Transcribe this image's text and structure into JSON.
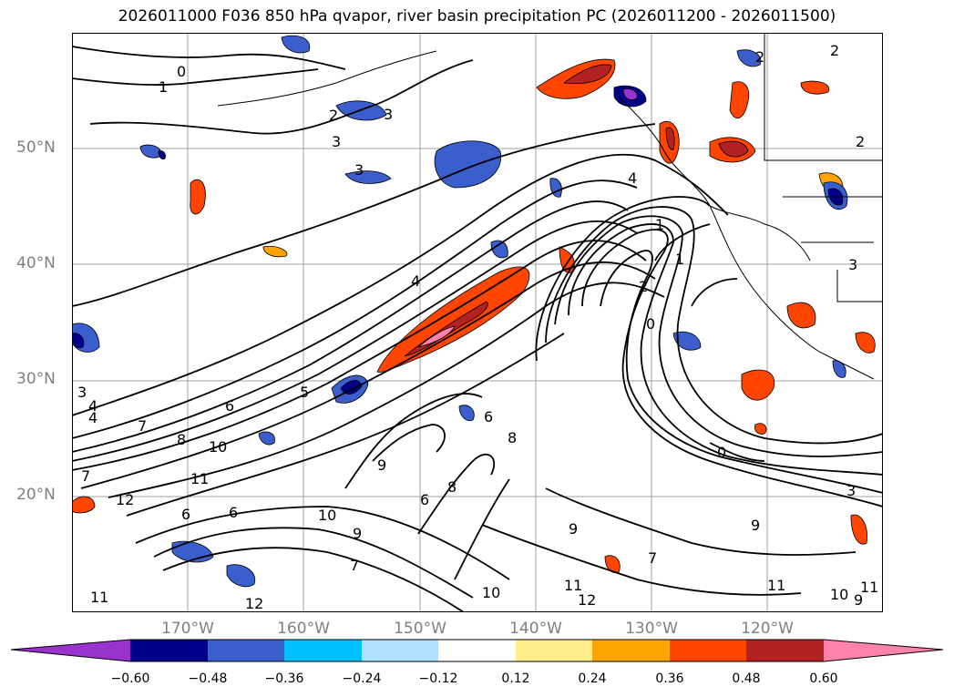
{
  "title": "2026011000 F036 850 hPa qvapor, river basin precipitation PC (2026011200 - 2026011500)",
  "lat_labels": [
    "50°N",
    "40°N",
    "30°N",
    "20°N"
  ],
  "lon_labels": [
    "170°W",
    "160°W",
    "150°W",
    "140°W",
    "130°W",
    "120°W"
  ],
  "colorbar": {
    "ticks": [
      "−0.60",
      "−0.48",
      "−0.36",
      "−0.24",
      "−0.12",
      "0.12",
      "0.24",
      "0.36",
      "0.48",
      "0.60"
    ],
    "colors": [
      "#9a32cd",
      "#00008b",
      "#3a5fcd",
      "#00bfff",
      "#b0e2ff",
      "#ffffff",
      "#ffec8b",
      "#ffa500",
      "#ff4500",
      "#b22222",
      "#ff82ab"
    ]
  },
  "contour_labels": [
    "0",
    "1",
    "2",
    "3",
    "3",
    "3",
    "2",
    "2",
    "2",
    "4",
    "4",
    "1",
    "1",
    "2",
    "0",
    "4",
    "3",
    "7",
    "8",
    "10",
    "11",
    "12",
    "9",
    "8",
    "6",
    "6",
    "6",
    "8",
    "9",
    "10",
    "7",
    "9",
    "11",
    "12",
    "10",
    "11",
    "12",
    "11",
    "10",
    "9",
    "11",
    "7",
    "9",
    "6",
    "7",
    "0",
    "3",
    "3",
    "4",
    "6",
    "5"
  ]
}
